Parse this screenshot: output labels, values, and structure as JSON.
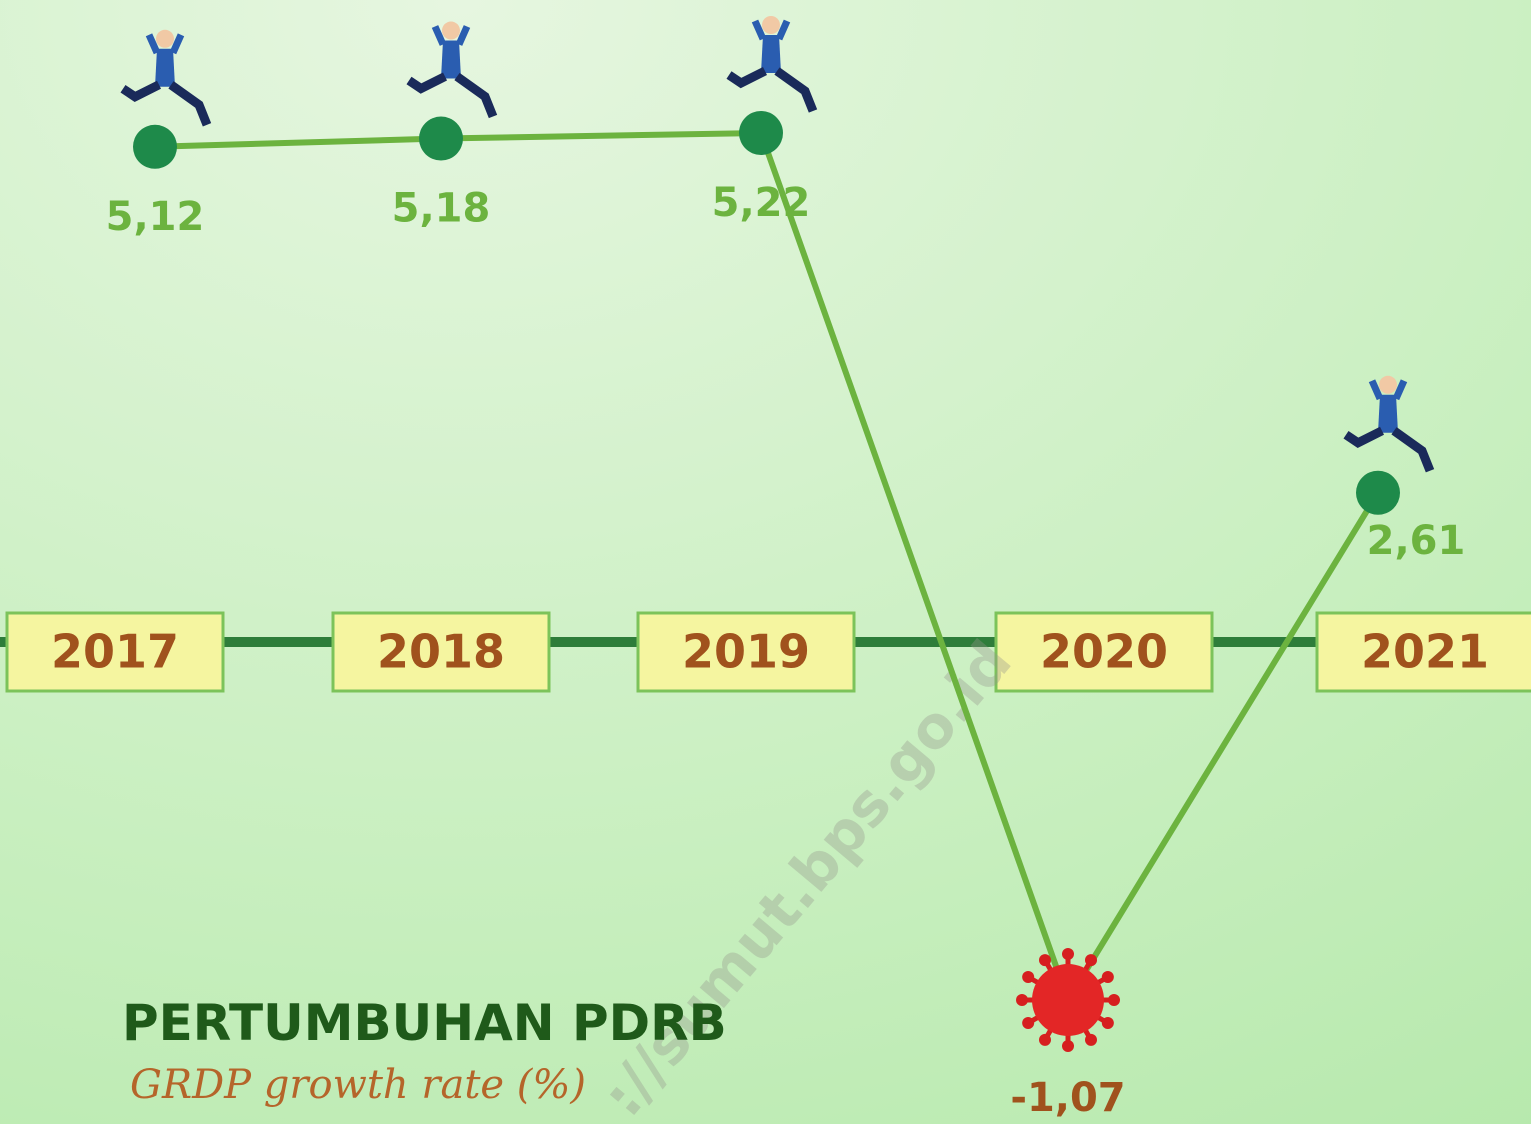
{
  "chart_data": {
    "type": "line",
    "title": "PERTUMBUHAN PDRB",
    "subtitle": "GRDP growth rate (%)",
    "watermark": "://sumut.bps.go.id",
    "categories": [
      "2017",
      "2018",
      "2019",
      "2020",
      "2021"
    ],
    "values": [
      5.12,
      5.18,
      5.22,
      -1.07,
      2.61
    ],
    "value_labels": [
      "5,12",
      "5,18",
      "5,22",
      "-1,07",
      "2,61"
    ],
    "color": "#6cb33f",
    "marker_color": "#1e8a4a"
  }
}
